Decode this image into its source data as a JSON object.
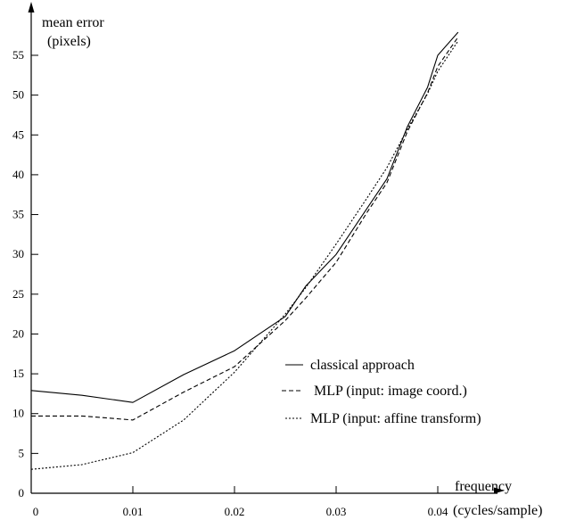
{
  "chart_data": {
    "type": "line",
    "title": "",
    "ylabel": [
      "mean error",
      "(pixels)"
    ],
    "xlabel": [
      "frequency",
      "(cycles/sample)"
    ],
    "xlim": [
      0,
      0.044
    ],
    "ylim": [
      0,
      58
    ],
    "x_ticks": [
      {
        "value": 0,
        "label": "0"
      },
      {
        "value": 0.01,
        "label": "0.01"
      },
      {
        "value": 0.02,
        "label": "0.02"
      },
      {
        "value": 0.03,
        "label": "0.03"
      },
      {
        "value": 0.04,
        "label": "0.04"
      }
    ],
    "y_ticks": [
      {
        "value": 0,
        "label": "0"
      },
      {
        "value": 5,
        "label": "5"
      },
      {
        "value": 10,
        "label": "10"
      },
      {
        "value": 15,
        "label": "15"
      },
      {
        "value": 20,
        "label": "20"
      },
      {
        "value": 25,
        "label": "25"
      },
      {
        "value": 30,
        "label": "30"
      },
      {
        "value": 35,
        "label": "35"
      },
      {
        "value": 40,
        "label": "40"
      },
      {
        "value": 45,
        "label": "45"
      },
      {
        "value": 50,
        "label": "50"
      },
      {
        "value": 55,
        "label": "55"
      }
    ],
    "grid": false,
    "legend_position": "lower-right",
    "series": [
      {
        "name": "classical approach",
        "style": "solid",
        "points": [
          [
            0,
            12.9
          ],
          [
            0.005,
            12.3
          ],
          [
            0.01,
            11.4
          ],
          [
            0.015,
            14.9
          ],
          [
            0.02,
            17.9
          ],
          [
            0.025,
            22.2
          ],
          [
            0.027,
            26.0
          ],
          [
            0.03,
            30.0
          ],
          [
            0.033,
            35.7
          ],
          [
            0.035,
            39.5
          ],
          [
            0.037,
            46.0
          ],
          [
            0.039,
            51.0
          ],
          [
            0.04,
            55.0
          ],
          [
            0.042,
            57.9
          ]
        ]
      },
      {
        "name": "MLP (input: image coord.)",
        "style": "dashed",
        "points": [
          [
            0,
            9.7
          ],
          [
            0.005,
            9.7
          ],
          [
            0.01,
            9.2
          ],
          [
            0.015,
            12.7
          ],
          [
            0.02,
            15.9
          ],
          [
            0.025,
            21.7
          ],
          [
            0.027,
            24.5
          ],
          [
            0.03,
            29.0
          ],
          [
            0.033,
            35.2
          ],
          [
            0.035,
            39.0
          ],
          [
            0.037,
            45.4
          ],
          [
            0.039,
            50.3
          ],
          [
            0.04,
            53.6
          ],
          [
            0.042,
            57.3
          ]
        ]
      },
      {
        "name": "MLP (input: affine transform)",
        "style": "dotted",
        "points": [
          [
            0,
            3.0
          ],
          [
            0.005,
            3.6
          ],
          [
            0.01,
            5.1
          ],
          [
            0.015,
            9.2
          ],
          [
            0.02,
            15.2
          ],
          [
            0.025,
            22.5
          ],
          [
            0.027,
            25.8
          ],
          [
            0.03,
            31.3
          ],
          [
            0.033,
            37.0
          ],
          [
            0.035,
            40.9
          ],
          [
            0.037,
            45.7
          ],
          [
            0.039,
            50.2
          ],
          [
            0.04,
            53.0
          ],
          [
            0.042,
            56.8
          ]
        ]
      }
    ]
  }
}
